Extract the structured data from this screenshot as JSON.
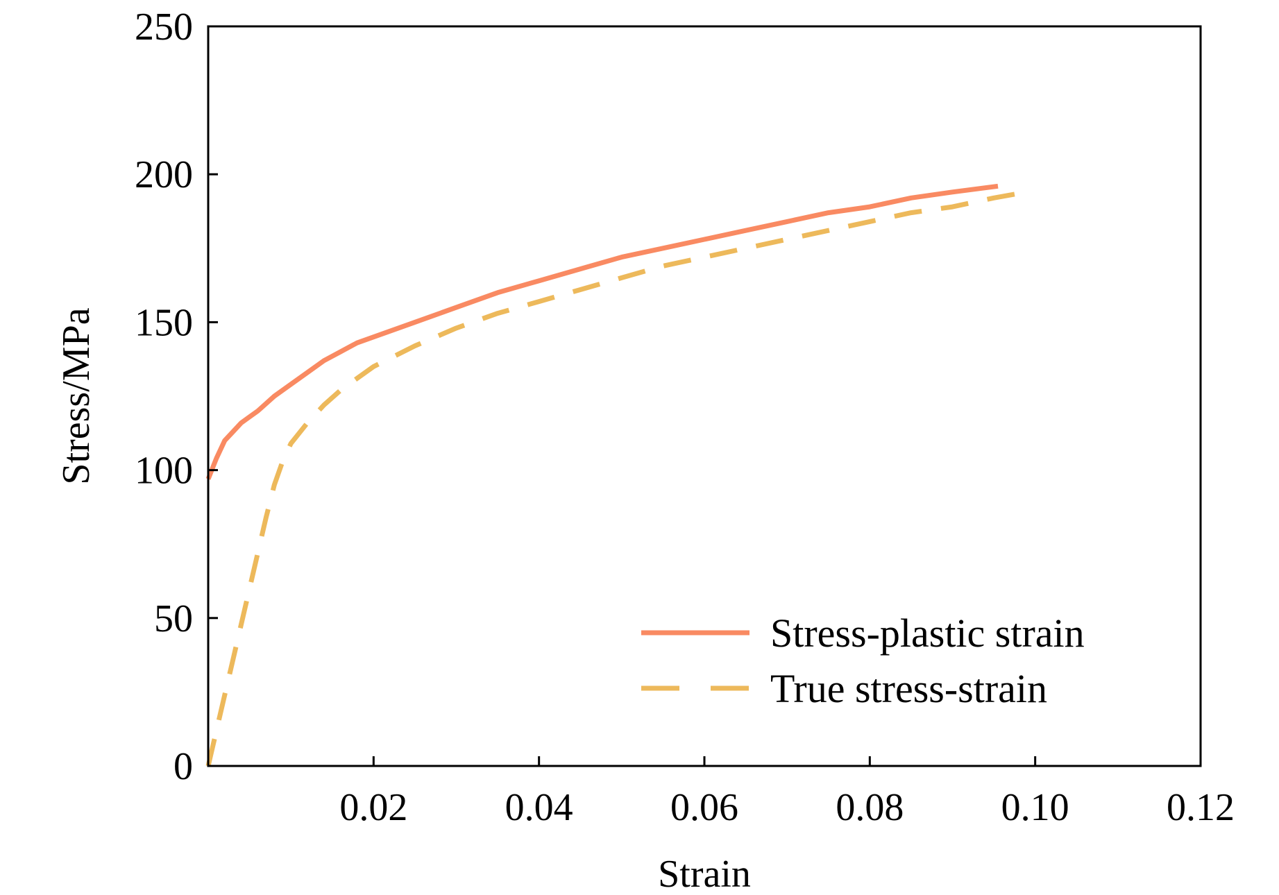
{
  "chart_data": {
    "type": "line",
    "xlabel": "Strain",
    "ylabel": "Stress/MPa",
    "xlim": [
      0,
      0.12
    ],
    "ylim": [
      0,
      250
    ],
    "x_ticks": [
      0.02,
      0.04,
      0.06,
      0.08,
      0.1,
      0.12
    ],
    "x_tick_labels": [
      "0.02",
      "0.04",
      "0.06",
      "0.08",
      "0.10",
      "0.12"
    ],
    "y_ticks": [
      0,
      50,
      100,
      150,
      200,
      250
    ],
    "y_tick_labels": [
      "0",
      "50",
      "100",
      "150",
      "200",
      "250"
    ],
    "grid": false,
    "legend_position": "bottom-right",
    "series": [
      {
        "name": "Stress-plastic strain",
        "color": "#F98A62",
        "style": "solid",
        "x": [
          0.0,
          0.001,
          0.002,
          0.003,
          0.004,
          0.005,
          0.006,
          0.008,
          0.01,
          0.012,
          0.014,
          0.016,
          0.018,
          0.02,
          0.025,
          0.03,
          0.035,
          0.04,
          0.045,
          0.05,
          0.055,
          0.06,
          0.065,
          0.07,
          0.075,
          0.08,
          0.085,
          0.09,
          0.0955
        ],
        "y": [
          97,
          104,
          110,
          113,
          116,
          118,
          120,
          125,
          129,
          133,
          137,
          140,
          143,
          145,
          150,
          155,
          160,
          164,
          168,
          172,
          175,
          178,
          181,
          184,
          187,
          189,
          192,
          194,
          196
        ]
      },
      {
        "name": "True stress-strain",
        "color": "#EDB95B",
        "style": "dashed",
        "x": [
          0.0,
          0.001,
          0.002,
          0.003,
          0.004,
          0.005,
          0.006,
          0.007,
          0.008,
          0.009,
          0.01,
          0.012,
          0.014,
          0.016,
          0.018,
          0.02,
          0.025,
          0.03,
          0.035,
          0.04,
          0.045,
          0.05,
          0.055,
          0.06,
          0.065,
          0.07,
          0.075,
          0.08,
          0.085,
          0.09,
          0.095,
          0.099
        ],
        "y": [
          0,
          12,
          24,
          36,
          48,
          60,
          72,
          84,
          95,
          103,
          109,
          116,
          122,
          127,
          131,
          135,
          142,
          148,
          153,
          157,
          161,
          165,
          169,
          172,
          175,
          178,
          181,
          184,
          187,
          189,
          192,
          194
        ]
      }
    ]
  }
}
